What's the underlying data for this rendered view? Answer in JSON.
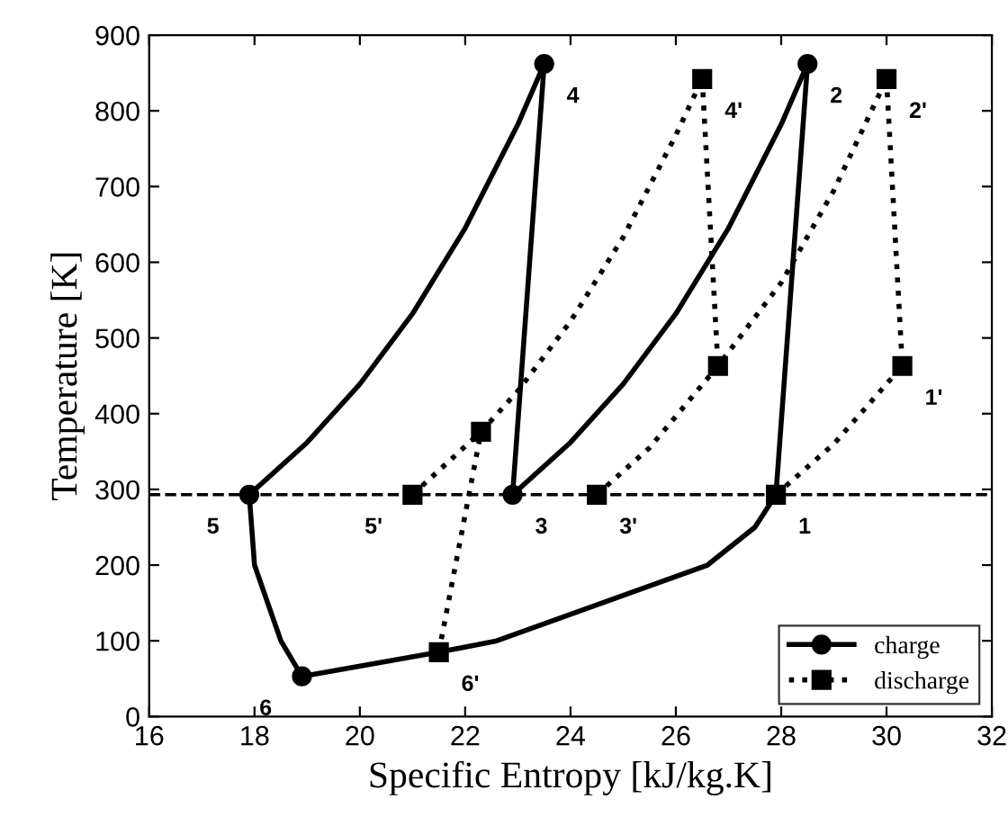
{
  "chart_data": {
    "type": "line",
    "xlabel": "Specific Entropy [kJ/kg.K]",
    "ylabel": "Temperature [K]",
    "xlim": [
      16,
      32
    ],
    "xticks": [
      16,
      18,
      20,
      22,
      24,
      26,
      28,
      30,
      32
    ],
    "ylim": [
      0,
      900
    ],
    "yticks": [
      0,
      100,
      200,
      300,
      400,
      500,
      600,
      700,
      800,
      900
    ],
    "grid": false,
    "legend": "bottom right",
    "series": [
      {
        "name": "charge",
        "color": "#000000",
        "line_style": "solid",
        "x": [
          27.9,
          28.2,
          28.5
        ],
        "values": [
          293,
          578,
          862
        ]
      },
      {
        "color": "#000000",
        "line_style": "solid",
        "x": [
          22.9,
          24,
          25,
          26,
          27,
          28,
          28.5
        ],
        "values": [
          293,
          362,
          439,
          532,
          645,
          782,
          862
        ]
      },
      {
        "color": "#000000",
        "line_style": "solid",
        "x": [
          22.9,
          23.2,
          23.5
        ],
        "values": [
          293,
          578,
          862
        ]
      },
      {
        "color": "#000000",
        "line_style": "solid",
        "x": [
          17.9,
          19,
          20,
          21,
          22,
          23,
          23.5
        ],
        "values": [
          293,
          362,
          439,
          532,
          645,
          782,
          862
        ]
      },
      {
        "color": "#000000",
        "line_style": "solid",
        "x": [
          17.9,
          18.0,
          18.5,
          18.9
        ],
        "values": [
          293,
          200,
          100,
          53
        ]
      },
      {
        "color": "#000000",
        "line_style": "solid",
        "x": [
          18.9,
          21.5,
          22.6,
          24.6,
          26.6,
          27.5,
          27.9
        ],
        "values": [
          53,
          85,
          100,
          150,
          200,
          250,
          293
        ]
      },
      {
        "type": "scatter",
        "color": "#000000",
        "marker": "circle",
        "x": [
          28.5,
          22.9,
          23.5,
          17.9,
          18.9
        ],
        "values": [
          862,
          293,
          862,
          293,
          53
        ]
      },
      {
        "name": "discharge",
        "color": "#000000",
        "line_style": "dotted",
        "x": [
          21.0,
          22.3,
          23,
          24,
          25,
          26,
          26.5
        ],
        "values": [
          293,
          376,
          430,
          522,
          633,
          768,
          842
        ]
      },
      {
        "color": "#000000",
        "line_style": "dotted",
        "x": [
          21.5,
          22.3
        ],
        "values": [
          85,
          376
        ]
      },
      {
        "color": "#000000",
        "line_style": "dotted",
        "x": [
          26.5,
          26.8
        ],
        "values": [
          842,
          463
        ]
      },
      {
        "color": "#000000",
        "line_style": "dotted",
        "x": [
          24.5,
          25.5,
          26.8,
          28,
          29,
          30
        ],
        "values": [
          293,
          355,
          463,
          573,
          695,
          842
        ]
      },
      {
        "color": "#000000",
        "line_style": "dotted",
        "x": [
          30,
          30.3
        ],
        "values": [
          842,
          463
        ]
      },
      {
        "color": "#000000",
        "line_style": "dotted",
        "x": [
          27.9,
          29,
          30.3
        ],
        "values": [
          293,
          360,
          463
        ]
      },
      {
        "type": "scatter",
        "color": "#000000",
        "marker": "square",
        "x": [
          30.3,
          30.0,
          24.5,
          26.5,
          21.0,
          21.5,
          22.3,
          26.8,
          27.9
        ],
        "values": [
          463,
          842,
          293,
          842,
          293,
          85,
          376,
          463,
          293
        ]
      }
    ],
    "ref_lines": [
      {
        "axis": "y",
        "value": 293,
        "color": "#000000",
        "line_style": "dashed"
      }
    ],
    "annotations": [
      {
        "text": "1",
        "x": 27.9,
        "y": 293
      },
      {
        "text": "2",
        "x": 28.5,
        "y": 862
      },
      {
        "text": "3",
        "x": 22.9,
        "y": 293
      },
      {
        "text": "4",
        "x": 23.5,
        "y": 862
      },
      {
        "text": "5",
        "x": 17.9,
        "y": 293
      },
      {
        "text": "6",
        "x": 18.9,
        "y": 53
      },
      {
        "text": "1'",
        "x": 30.3,
        "y": 463
      },
      {
        "text": "2'",
        "x": 30.0,
        "y": 842
      },
      {
        "text": "3'",
        "x": 24.5,
        "y": 293
      },
      {
        "text": "4'",
        "x": 26.5,
        "y": 842
      },
      {
        "text": "5'",
        "x": 21.0,
        "y": 293
      },
      {
        "text": "6'",
        "x": 21.5,
        "y": 85
      }
    ]
  }
}
